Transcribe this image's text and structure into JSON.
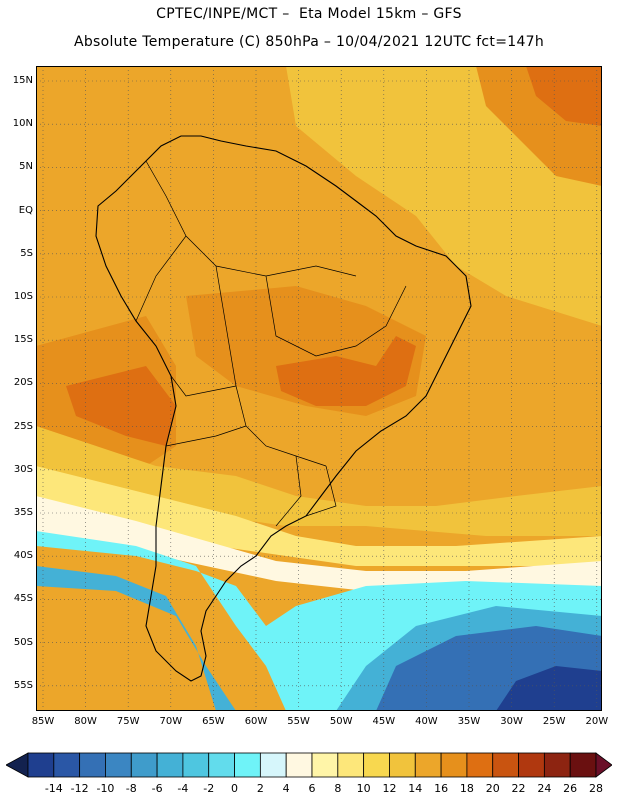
{
  "header": {
    "line1": "CPTEC/INPE/MCT –  Eta Model 15km – GFS",
    "line2": "Absolute Temperature (C) 850hPa – 10/04/2021 12UTC fct=147h"
  },
  "axes": {
    "lat_labels": [
      "15N",
      "10N",
      "5N",
      "EQ",
      "5S",
      "10S",
      "15S",
      "20S",
      "25S",
      "30S",
      "35S",
      "40S",
      "45S",
      "50S",
      "55S"
    ],
    "lon_labels": [
      "85W",
      "80W",
      "75W",
      "70W",
      "65W",
      "60W",
      "55W",
      "50W",
      "45W",
      "40W",
      "35W",
      "30W",
      "25W",
      "20W"
    ]
  },
  "colorbar": {
    "levels": [
      "-14",
      "-12",
      "-10",
      "-8",
      "-6",
      "-4",
      "-2",
      "0",
      "2",
      "4",
      "6",
      "8",
      "10",
      "12",
      "14",
      "16",
      "18",
      "20",
      "22",
      "24",
      "26",
      "28"
    ],
    "colors": [
      "#1f3f8f",
      "#2a57a6",
      "#3470b5",
      "#3b86c2",
      "#3f9ccb",
      "#44b1d6",
      "#4ec6e0",
      "#62dcec",
      "#6ff3f8",
      "#d6f6fb",
      "#fff8e1",
      "#fff5a8",
      "#fde77a",
      "#f8d84f",
      "#f1c33c",
      "#eca62a",
      "#e6901c",
      "#de6f12",
      "#c95410",
      "#b0380f",
      "#8d2411",
      "#6a1010"
    ],
    "left_arrow_color": "#13224f",
    "right_arrow_color": "#6a0f28"
  },
  "map": {
    "background": "#eca62a"
  }
}
